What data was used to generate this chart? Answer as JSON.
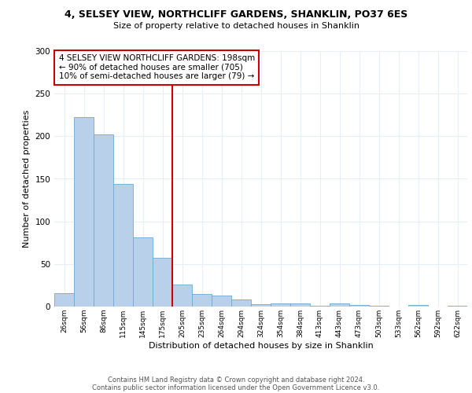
{
  "title1": "4, SELSEY VIEW, NORTHCLIFF GARDENS, SHANKLIN, PO37 6ES",
  "title2": "Size of property relative to detached houses in Shanklin",
  "xlabel": "Distribution of detached houses by size in Shanklin",
  "ylabel": "Number of detached properties",
  "bin_labels": [
    "26sqm",
    "56sqm",
    "86sqm",
    "115sqm",
    "145sqm",
    "175sqm",
    "205sqm",
    "235sqm",
    "264sqm",
    "294sqm",
    "324sqm",
    "354sqm",
    "384sqm",
    "413sqm",
    "443sqm",
    "473sqm",
    "503sqm",
    "533sqm",
    "562sqm",
    "592sqm",
    "622sqm"
  ],
  "bar_heights": [
    16,
    222,
    202,
    144,
    81,
    57,
    26,
    15,
    13,
    8,
    3,
    4,
    4,
    1,
    4,
    2,
    1,
    0,
    2,
    0,
    1
  ],
  "bar_color": "#b8d0ea",
  "bar_edge_color": "#6aaad4",
  "vline_x_index": 6,
  "vline_color": "#cc0000",
  "annotation_lines": [
    "4 SELSEY VIEW NORTHCLIFF GARDENS: 198sqm",
    "← 90% of detached houses are smaller (705)",
    "10% of semi-detached houses are larger (79) →"
  ],
  "annotation_box_color": "#cc0000",
  "ylim": [
    0,
    300
  ],
  "yticks": [
    0,
    50,
    100,
    150,
    200,
    250,
    300
  ],
  "footer1": "Contains HM Land Registry data © Crown copyright and database right 2024.",
  "footer2": "Contains public sector information licensed under the Open Government Licence v3.0.",
  "bg_color": "#ffffff",
  "plot_bg_color": "#ffffff",
  "grid_color": "#e8eef5"
}
